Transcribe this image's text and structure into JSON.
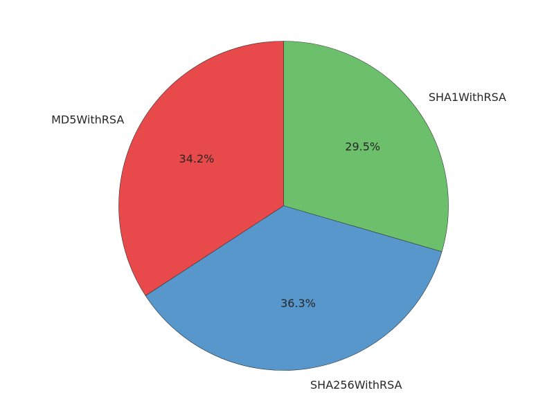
{
  "chart_data": {
    "type": "pie",
    "title": "",
    "start_angle_deg": 90,
    "direction": "clockwise",
    "slices": [
      {
        "label": "SHA1WithRSA",
        "value": 29.5,
        "pct_label": "29.5%",
        "color": "#6dc06b"
      },
      {
        "label": "SHA256WithRSA",
        "value": 36.3,
        "pct_label": "36.3%",
        "color": "#5797cb"
      },
      {
        "label": "MD5WithRSA",
        "value": 34.2,
        "pct_label": "34.2%",
        "color": "#e8494a"
      }
    ]
  }
}
